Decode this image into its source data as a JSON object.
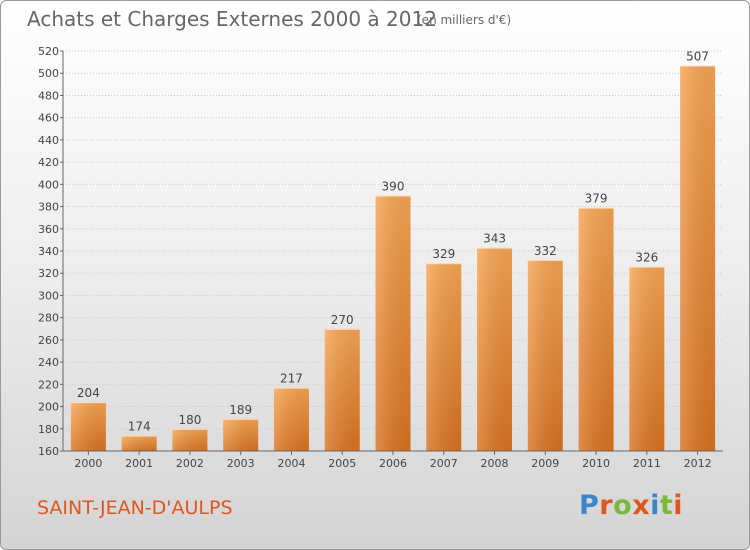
{
  "header": {
    "title": "Achats et Charges Externes 2000 à 2012",
    "unit": "(en milliers d'€)"
  },
  "footer": {
    "place": "SAINT-JEAN-D'AULPS",
    "logo": {
      "text": "Proxiti",
      "letters": [
        {
          "ch": "P",
          "color": "#3a86c8"
        },
        {
          "ch": "r",
          "color": "#e0561f"
        },
        {
          "ch": "o",
          "color": "#7ab83a"
        },
        {
          "ch": "x",
          "color": "#e0561f"
        },
        {
          "ch": "i",
          "color": "#3a86c8"
        },
        {
          "ch": "t",
          "color": "#7ab83a"
        },
        {
          "ch": "i",
          "color": "#e0561f"
        }
      ]
    }
  },
  "colors": {
    "bar_top": "#f7a552",
    "bar_bottom": "#d97321",
    "title": "#666666",
    "place": "#e0561f"
  },
  "chart_data": {
    "type": "bar",
    "title": "Achats et Charges Externes 2000 à 2012",
    "subtitle": "(en milliers d'€)",
    "xlabel": "",
    "ylabel": "",
    "categories": [
      "2000",
      "2001",
      "2002",
      "2003",
      "2004",
      "2005",
      "2006",
      "2007",
      "2008",
      "2009",
      "2010",
      "2011",
      "2012"
    ],
    "values": [
      204,
      174,
      180,
      189,
      217,
      270,
      390,
      329,
      343,
      332,
      379,
      326,
      507
    ],
    "ylim": [
      160,
      520
    ],
    "yticks": [
      160,
      180,
      200,
      220,
      240,
      260,
      280,
      300,
      320,
      340,
      360,
      380,
      400,
      420,
      440,
      460,
      480,
      500,
      520
    ],
    "grid": true,
    "legend": "none"
  }
}
